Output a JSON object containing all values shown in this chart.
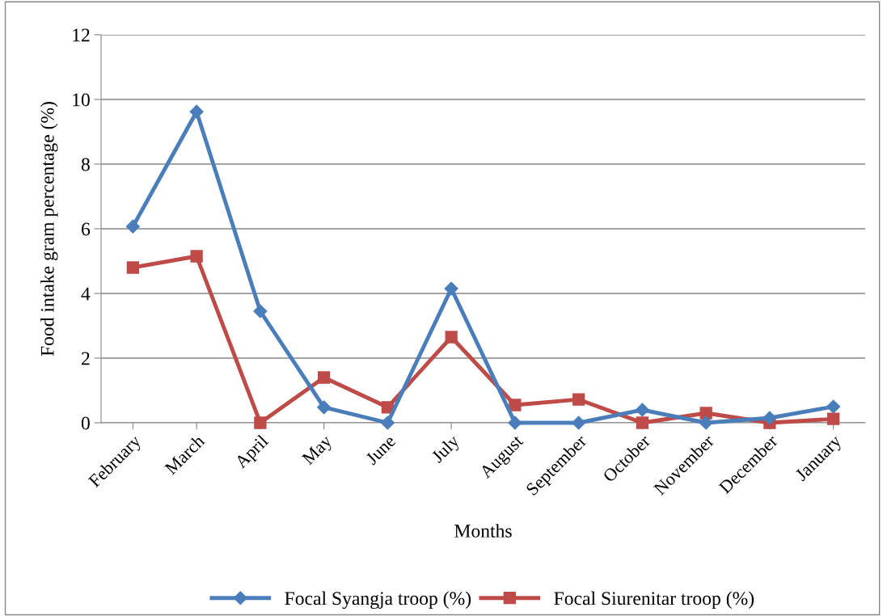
{
  "chart_data": {
    "type": "line",
    "xlabel": "Months",
    "ylabel": "Food intake gram percentage (%)",
    "categories": [
      "February",
      "March",
      "April",
      "May",
      "June",
      "July",
      "August",
      "September",
      "October",
      "November",
      "December",
      "January"
    ],
    "series": [
      {
        "name": "Focal Syangja troop (%)",
        "color": "#4a7ebb",
        "marker": "diamond",
        "values": [
          6.07,
          9.62,
          3.45,
          0.48,
          0,
          4.15,
          0,
          0,
          0.4,
          0,
          0.15,
          0.5
        ]
      },
      {
        "name": "Focal Siurenitar troop (%)",
        "color": "#be4b48",
        "marker": "square",
        "values": [
          4.8,
          5.15,
          0,
          1.4,
          0.48,
          2.65,
          0.55,
          0.72,
          0,
          0.3,
          0,
          0.12
        ]
      }
    ],
    "ylim": [
      0,
      12
    ],
    "yticks": [
      0,
      2,
      4,
      6,
      8,
      10,
      12
    ],
    "grid": "y",
    "legend": "bottom",
    "line_style": "solid"
  }
}
